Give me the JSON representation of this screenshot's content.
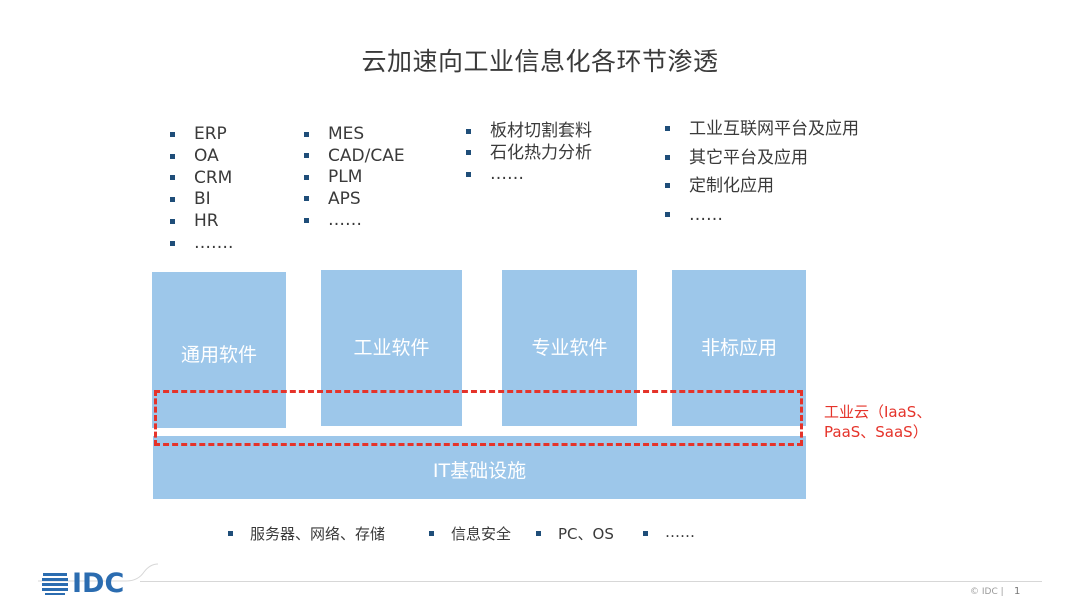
{
  "title": "云加速向工业信息化各环节渗透",
  "lists": {
    "general": [
      "ERP",
      "OA",
      "CRM",
      "BI",
      "HR",
      "……."
    ],
    "industrial": [
      "MES",
      "CAD/CAE",
      "PLM",
      "APS",
      "……"
    ],
    "professional": [
      "板材切割套料",
      "石化热力分析",
      "……"
    ],
    "nonstandard": [
      "工业互联网平台及应用",
      "其它平台及应用",
      "定制化应用",
      "……"
    ]
  },
  "boxes": {
    "general": "通用软件",
    "industrial": "工业软件",
    "professional": "专业软件",
    "nonstandard": "非标应用",
    "it": "IT基础设施"
  },
  "cloud": {
    "line1": "工业云（IaaS、",
    "line2": "PaaS、SaaS）"
  },
  "bottom_items": {
    "servers": "服务器、网络、存储",
    "security": "信息安全",
    "pcos": "PC、OS",
    "more": "……"
  },
  "footer": {
    "logo_text": "IDC",
    "copyright": "© IDC |",
    "page": "1"
  },
  "colors": {
    "box_fill": "#9dc7ea",
    "cloud_red": "#e5332a",
    "bullet": "#1f4e79",
    "logo_blue": "#2b6cb0"
  }
}
